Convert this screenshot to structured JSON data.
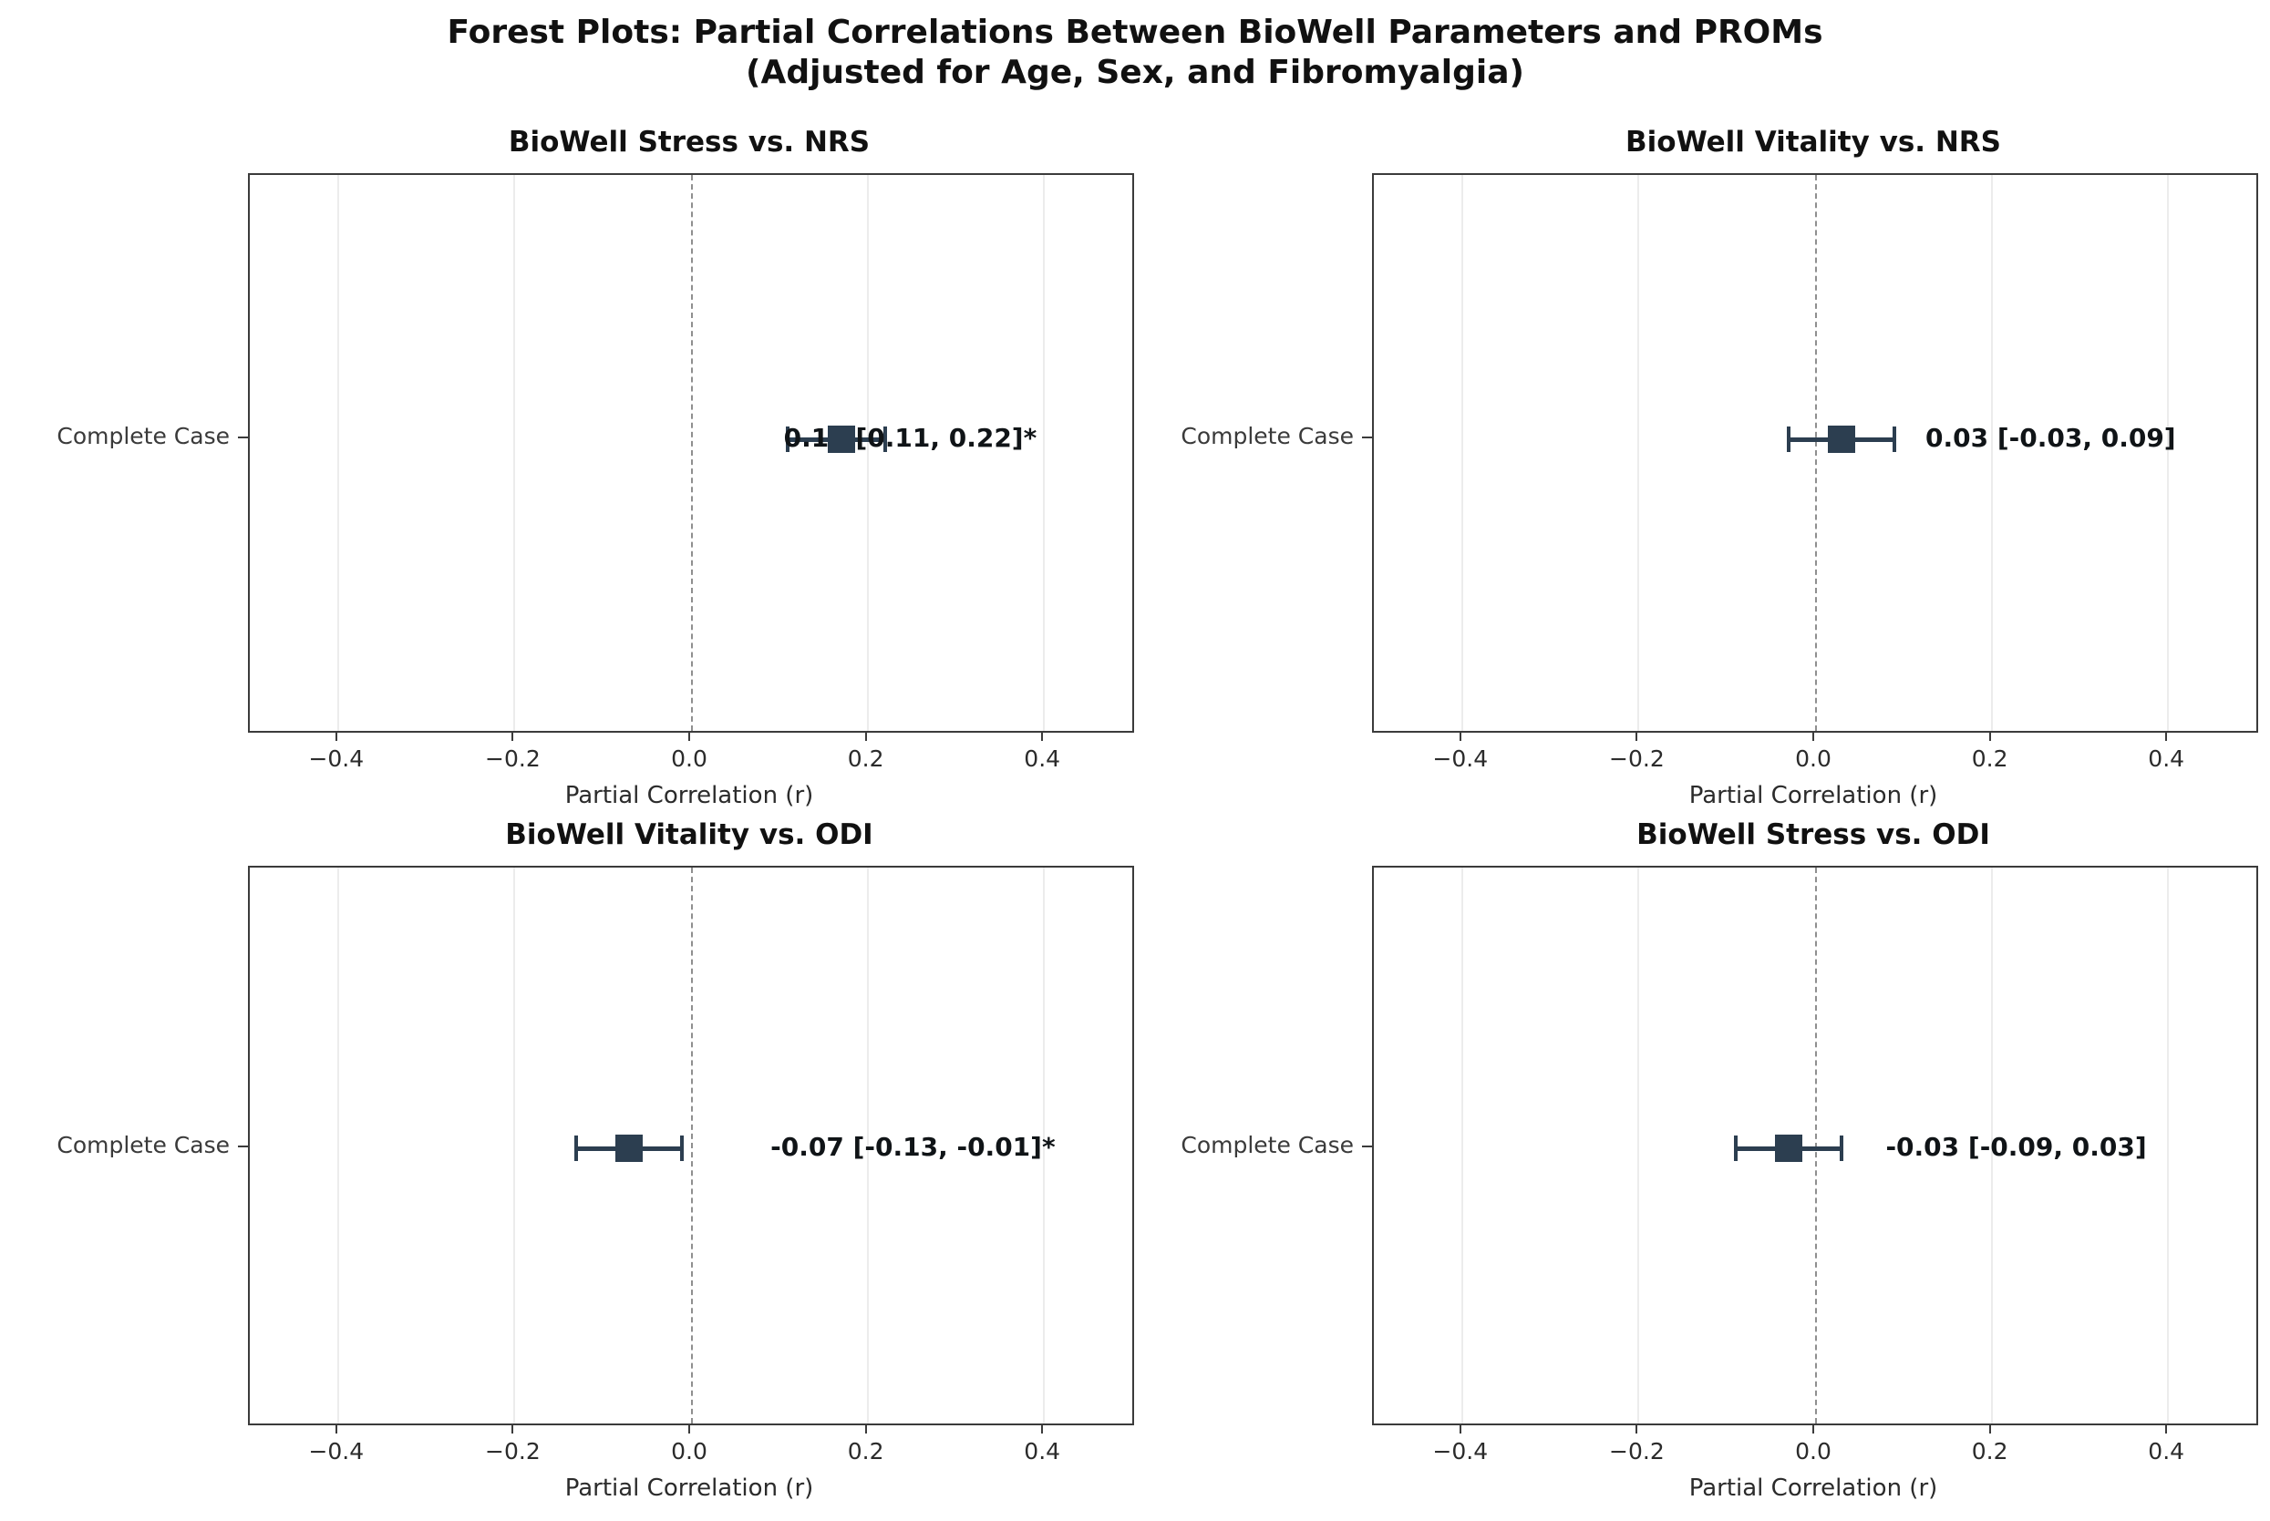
{
  "figure": {
    "title_line1": "Forest Plots: Partial Correlations Between BioWell Parameters and PROMs",
    "title_line2": "(Adjusted for Age, Sex, and Fibromyalgia)"
  },
  "axis": {
    "xlabel": "Partial Correlation (r)",
    "row_label": "Complete Case",
    "xlim": [
      -0.5,
      0.5
    ],
    "xticks": [
      {
        "value": -0.4,
        "label": "−0.4"
      },
      {
        "value": -0.2,
        "label": "−0.2"
      },
      {
        "value": 0.0,
        "label": "0.0"
      },
      {
        "value": 0.2,
        "label": "0.2"
      },
      {
        "value": 0.4,
        "label": "0.4"
      }
    ],
    "grid": true,
    "zero_line": "dashed"
  },
  "colors": {
    "marker": "#2c3e50",
    "grid_line": "#ececec",
    "zero_line": "#8f8f8f",
    "frame": "#3b3b3b",
    "annotation_text": "#101417"
  },
  "chart_data": [
    {
      "type": "forest",
      "title": "BioWell Stress vs. NRS",
      "row": "Complete Case",
      "estimate": 0.17,
      "ci_low": 0.11,
      "ci_high": 0.22,
      "significant": true,
      "label": "0.17 [0.11, 0.22]*",
      "label_x": 0.105
    },
    {
      "type": "forest",
      "title": "BioWell Vitality vs. NRS",
      "row": "Complete Case",
      "estimate": 0.03,
      "ci_low": -0.03,
      "ci_high": 0.09,
      "significant": false,
      "label": "0.03 [-0.03, 0.09]",
      "label_x": 0.125
    },
    {
      "type": "forest",
      "title": "BioWell Vitality vs. ODI",
      "row": "Complete Case",
      "estimate": -0.07,
      "ci_low": -0.13,
      "ci_high": -0.01,
      "significant": true,
      "label": "-0.07 [-0.13, -0.01]*",
      "label_x": 0.09
    },
    {
      "type": "forest",
      "title": "BioWell Stress vs. ODI",
      "row": "Complete Case",
      "estimate": -0.03,
      "ci_low": -0.09,
      "ci_high": 0.03,
      "significant": false,
      "label": "-0.03 [-0.09, 0.03]",
      "label_x": 0.08
    }
  ]
}
